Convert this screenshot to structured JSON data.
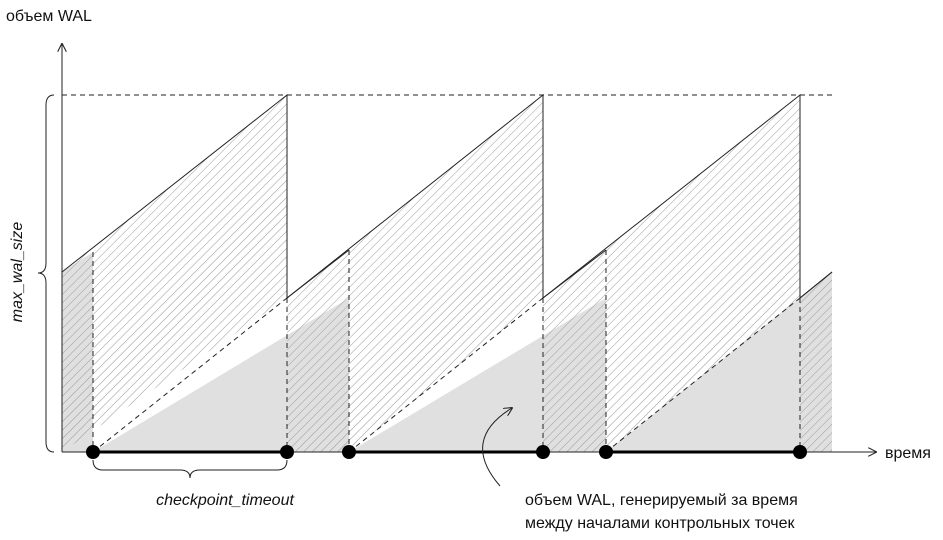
{
  "labels": {
    "y_axis": "объем WAL",
    "x_axis": "время",
    "max_wal_size": "max_wal_size",
    "checkpoint_timeout": "checkpoint_timeout",
    "note_line1": "объем WAL, генерируемый за время",
    "note_line2": "между началами контрольных точек"
  },
  "colors": {
    "shade_fill": "#e0e0e0",
    "hatch": "#9a9a9a",
    "line": "#222222"
  }
}
